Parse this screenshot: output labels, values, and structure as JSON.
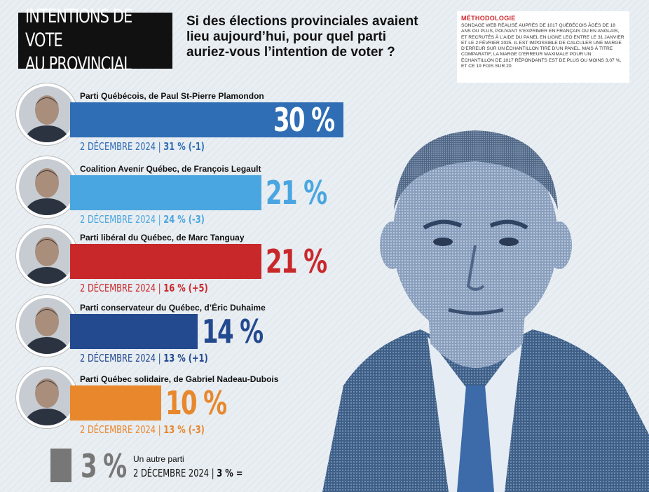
{
  "header": {
    "title_line1": "INTENTIONS DE VOTE",
    "title_line2": "AU PROVINCIAL",
    "question": "Si des élections provinciales avaient lieu aujourd’hui, pour quel parti auriez-vous l’intention de voter ?"
  },
  "methodology": {
    "title": "MÉTHODOLOGIE",
    "text": "SONDAGE WEB RÉALISÉ AUPRÈS DE 1017 QUÉBÉCOIS ÂGÉS DE 18 ANS OU PLUS, POUVANT S’EXPRIMER EN FRANÇAIS OU EN ANGLAIS, ET RECRUTÉS À L’AIDE DU PANEL EN LIGNE LEO ENTRE LE 31 JANVIER ET LE 2 FÉVRIER 2025. IL EST IMPOSSIBLE DE CALCULER UNE MARGE D’ERREUR SUR UN ÉCHANTILLON TIRÉ D’UN PANEL, MAIS À TITRE COMPARATIF, LA MARGE D’ERREUR MAXIMALE POUR UN ÉCHANTILLON DE 1017 RÉPONDANTS EST DE PLUS OU MOINS 3,07 %, ET CE 19 FOIS SUR 20."
  },
  "chart_data": {
    "type": "bar",
    "orientation": "horizontal",
    "categories": [
      "Parti Québécois, de Paul St-Pierre Plamondon",
      "Coalition Avenir Québec, de François Legault",
      "Parti libéral du Québec, de Marc Tanguay",
      "Parti conservateur du Québec, d’Éric Duhaime",
      "Parti Québec solidaire, de Gabriel Nadeau-Dubois"
    ],
    "values": [
      30,
      21,
      21,
      14,
      10
    ],
    "value_labels": [
      "30 %",
      "21 %",
      "21 %",
      "14 %",
      "10 %"
    ],
    "colors": [
      "#2f6db5",
      "#4aa6e0",
      "#c9282b",
      "#23498f",
      "#e8872c"
    ],
    "previous": [
      {
        "date": "2 DÉCEMBRE 2024",
        "value": "31 % (-1)"
      },
      {
        "date": "2 DÉCEMBRE 2024",
        "value": "24 % (-3)"
      },
      {
        "date": "2 DÉCEMBRE 2024",
        "value": "16 % (+5)"
      },
      {
        "date": "2 DÉCEMBRE 2024",
        "value": "13 % (+1)"
      },
      {
        "date": "2 DÉCEMBRE 2024",
        "value": "13 % (-3)"
      }
    ],
    "other": {
      "label": "Un autre parti",
      "value": 3,
      "value_label": "3 %",
      "previous_date": "2 DÉCEMBRE 2024",
      "previous_value": "3 % =",
      "color": "#777777"
    }
  }
}
